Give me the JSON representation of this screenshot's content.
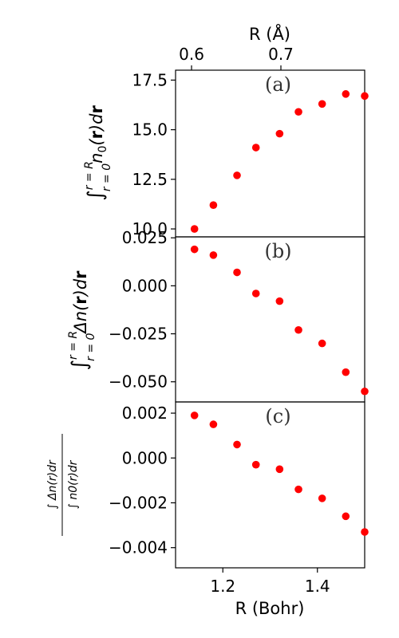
{
  "chart_data": [
    {
      "type": "scatter",
      "panel_label": "(a)",
      "x": [
        1.14,
        1.18,
        1.23,
        1.27,
        1.32,
        1.36,
        1.41,
        1.46,
        1.5
      ],
      "y": [
        10.0,
        11.2,
        12.7,
        14.1,
        14.8,
        15.9,
        16.3,
        16.8,
        16.7
      ],
      "ylim": [
        9.6,
        18.0
      ],
      "yticks": [
        "10.0",
        "12.5",
        "15.0",
        "17.5"
      ],
      "ylabel_parts": {
        "int": "∫",
        "upper": "r = R",
        "lower": "r = 0",
        "body": "n",
        "sub": "0",
        "rest1": "(",
        "bold1": "r",
        "rest2": ")d",
        "bold2": "r"
      },
      "top_xlabel": "R (Å)",
      "top_xticks": [
        "0.6",
        "0.7"
      ],
      "color": "#ff0000"
    },
    {
      "type": "scatter",
      "panel_label": "(b)",
      "x": [
        1.14,
        1.18,
        1.23,
        1.27,
        1.32,
        1.36,
        1.41,
        1.46,
        1.5
      ],
      "y": [
        0.019,
        0.016,
        0.007,
        -0.004,
        -0.008,
        -0.023,
        -0.03,
        -0.045,
        -0.055
      ],
      "ylim": [
        -0.0605,
        0.0255
      ],
      "yticks": [
        "0.025",
        "0.000",
        "−0.025",
        "−0.050"
      ],
      "ylabel_parts": {
        "int": "∫",
        "upper": "r = R",
        "lower": "r = 0",
        "body": "Δn(",
        "bold1": "r",
        "rest2": ")d",
        "bold2": "r"
      },
      "color": "#ff0000"
    },
    {
      "type": "scatter",
      "panel_label": "(c)",
      "x": [
        1.14,
        1.18,
        1.23,
        1.27,
        1.32,
        1.36,
        1.41,
        1.46,
        1.5
      ],
      "y": [
        0.0019,
        0.0015,
        0.0006,
        -0.0003,
        -0.0005,
        -0.0014,
        -0.0018,
        -0.0026,
        -0.0033
      ],
      "ylim": [
        -0.0049,
        0.0025
      ],
      "yticks": [
        "0.002",
        "0.000",
        "−0.002",
        "−0.004"
      ],
      "ylabel_parts": {
        "num": "∫ Δn(r)dr",
        "den": "∫ n0(r)dr"
      },
      "xlabel": "R (Bohr)",
      "xticks": [
        "1.2",
        "1.4"
      ],
      "color": "#ff0000"
    }
  ],
  "xlim_bohr": [
    1.1,
    1.5
  ]
}
